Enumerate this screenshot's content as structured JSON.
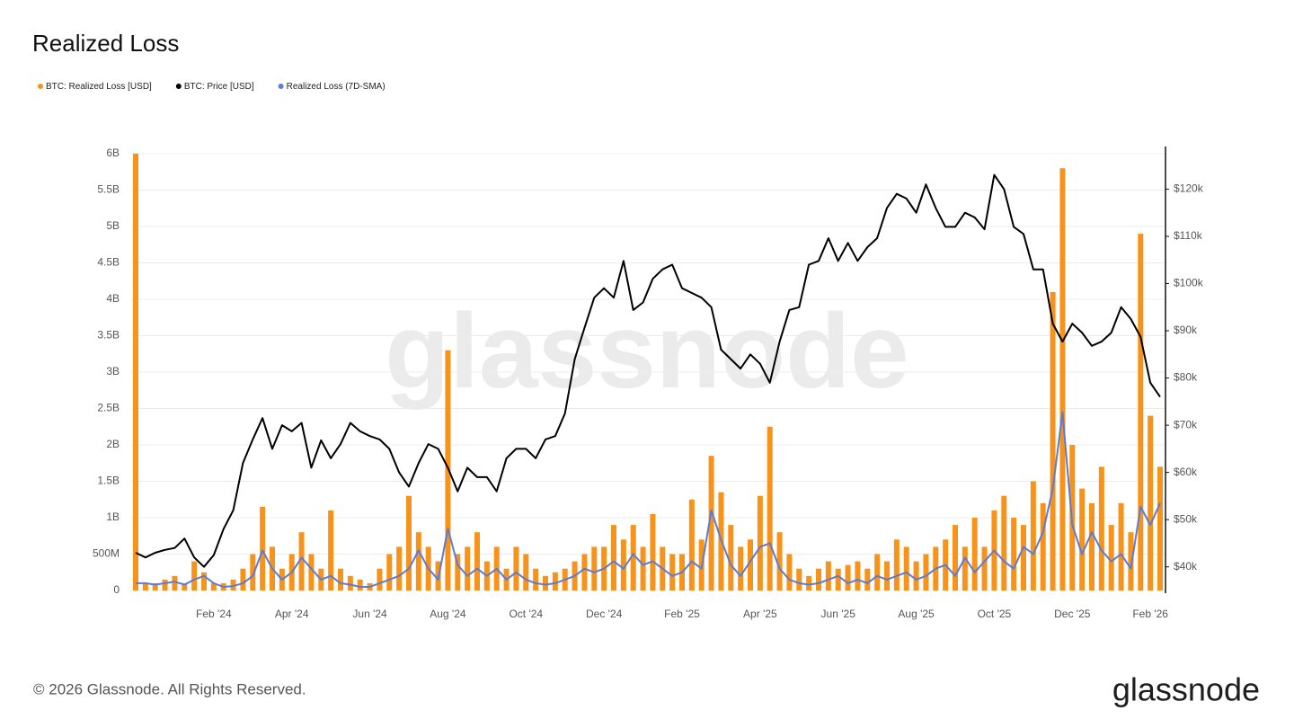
{
  "chart_data": {
    "type": "combo",
    "title": "Realized Loss",
    "watermark": "glassnode",
    "categories": [
      null,
      null,
      null,
      null,
      null,
      null,
      null,
      null,
      "Feb '24",
      null,
      null,
      null,
      null,
      null,
      null,
      null,
      "Apr '24",
      null,
      null,
      null,
      null,
      null,
      null,
      null,
      "Jun '24",
      null,
      null,
      null,
      null,
      null,
      null,
      null,
      "Aug '24",
      null,
      null,
      null,
      null,
      null,
      null,
      null,
      "Oct '24",
      null,
      null,
      null,
      null,
      null,
      null,
      null,
      "Dec '24",
      null,
      null,
      null,
      null,
      null,
      null,
      null,
      "Feb '25",
      null,
      null,
      null,
      null,
      null,
      null,
      null,
      "Apr '25",
      null,
      null,
      null,
      null,
      null,
      null,
      null,
      "Jun '25",
      null,
      null,
      null,
      null,
      null,
      null,
      null,
      "Aug '25",
      null,
      null,
      null,
      null,
      null,
      null,
      null,
      "Oct '25",
      null,
      null,
      null,
      null,
      null,
      null,
      null,
      "Dec '25",
      null,
      null,
      null,
      null,
      null,
      null,
      null,
      "Feb '26",
      null
    ],
    "series": [
      {
        "name": "BTC: Realized Loss [USD]",
        "type": "bar",
        "axis": "y",
        "color": "#f7931a",
        "values": [
          6000000000.0,
          100000000.0,
          100000000.0,
          150000000.0,
          200000000.0,
          100000000.0,
          400000000.0,
          250000000.0,
          100000000.0,
          100000000.0,
          150000000.0,
          300000000.0,
          500000000.0,
          1150000000.0,
          600000000.0,
          300000000.0,
          500000000.0,
          800000000.0,
          500000000.0,
          300000000.0,
          1100000000.0,
          300000000.0,
          200000000.0,
          150000000.0,
          100000000.0,
          300000000.0,
          500000000.0,
          600000000.0,
          1300000000.0,
          800000000.0,
          600000000.0,
          400000000.0,
          3300000000.0,
          500000000.0,
          600000000.0,
          800000000.0,
          400000000.0,
          600000000.0,
          300000000.0,
          600000000.0,
          500000000.0,
          300000000.0,
          200000000.0,
          250000000.0,
          300000000.0,
          400000000.0,
          500000000.0,
          600000000.0,
          600000000.0,
          900000000.0,
          700000000.0,
          900000000.0,
          600000000.0,
          1050000000.0,
          600000000.0,
          500000000.0,
          500000000.0,
          1250000000.0,
          700000000.0,
          1850000000.0,
          1350000000.0,
          900000000.0,
          600000000.0,
          700000000.0,
          1300000000.0,
          2250000000.0,
          800000000.0,
          500000000.0,
          300000000.0,
          200000000.0,
          300000000.0,
          400000000.0,
          300000000.0,
          350000000.0,
          400000000.0,
          300000000.0,
          500000000.0,
          400000000.0,
          700000000.0,
          600000000.0,
          400000000.0,
          500000000.0,
          600000000.0,
          700000000.0,
          900000000.0,
          600000000.0,
          1000000000.0,
          600000000.0,
          1100000000.0,
          1300000000.0,
          1000000000.0,
          900000000.0,
          1500000000.0,
          1200000000.0,
          4100000000.0,
          5800000000.0,
          2000000000.0,
          1400000000.0,
          1200000000.0,
          1700000000.0,
          900000000.0,
          1200000000.0,
          800000000.0,
          4900000000.0,
          2400000000.0,
          1700000000.0
        ]
      },
      {
        "name": "BTC: Price [USD]",
        "type": "line",
        "axis": "y2",
        "color": "#000000",
        "values": [
          43000,
          42000,
          43000,
          43600,
          44000,
          46000,
          42000,
          40000,
          42500,
          48000,
          52000,
          62000,
          67000,
          71500,
          65000,
          70000,
          68700,
          70500,
          61000,
          66800,
          63000,
          66000,
          70500,
          68700,
          67700,
          67000,
          65000,
          60000,
          57000,
          62000,
          66000,
          65000,
          61000,
          56000,
          61000,
          59000,
          59000,
          56000,
          63000,
          65000,
          65000,
          63000,
          67000,
          67700,
          72500,
          84000,
          90600,
          97000,
          99000,
          97000,
          104800,
          94400,
          96000,
          101000,
          103000,
          104000,
          99000,
          98000,
          97000,
          95000,
          86000,
          84000,
          82000,
          85000,
          83000,
          79000,
          87700,
          94400,
          95000,
          104000,
          104800,
          109600,
          104800,
          108600,
          104800,
          107700,
          109600,
          116000,
          119000,
          118000,
          115000,
          121000,
          116000,
          112000,
          112000,
          115000,
          114000,
          111500,
          123000,
          120000,
          112000,
          110500,
          103000,
          103000,
          91500,
          87700,
          91500,
          89600,
          86800,
          87700,
          89600,
          95000,
          92500,
          88700,
          79000,
          76000
        ]
      },
      {
        "name": "Realized Loss (7D-SMA)",
        "type": "line",
        "axis": "y",
        "color": "#5b7bd5",
        "values": [
          100000000.0,
          100000000.0,
          80000000.0,
          100000000.0,
          120000000.0,
          80000000.0,
          150000000.0,
          200000000.0,
          100000000.0,
          50000000.0,
          60000000.0,
          100000000.0,
          200000000.0,
          550000000.0,
          300000000.0,
          150000000.0,
          250000000.0,
          450000000.0,
          300000000.0,
          150000000.0,
          200000000.0,
          100000000.0,
          80000000.0,
          50000000.0,
          50000000.0,
          100000000.0,
          150000000.0,
          200000000.0,
          300000000.0,
          550000000.0,
          300000000.0,
          150000000.0,
          850000000.0,
          350000000.0,
          200000000.0,
          300000000.0,
          200000000.0,
          300000000.0,
          150000000.0,
          250000000.0,
          150000000.0,
          100000000.0,
          80000000.0,
          100000000.0,
          150000000.0,
          200000000.0,
          300000000.0,
          250000000.0,
          300000000.0,
          400000000.0,
          300000000.0,
          500000000.0,
          350000000.0,
          400000000.0,
          300000000.0,
          200000000.0,
          250000000.0,
          400000000.0,
          300000000.0,
          1100000000.0,
          700000000.0,
          350000000.0,
          200000000.0,
          400000000.0,
          600000000.0,
          650000000.0,
          300000000.0,
          150000000.0,
          100000000.0,
          80000000.0,
          100000000.0,
          150000000.0,
          200000000.0,
          100000000.0,
          150000000.0,
          100000000.0,
          200000000.0,
          150000000.0,
          200000000.0,
          250000000.0,
          150000000.0,
          200000000.0,
          300000000.0,
          350000000.0,
          200000000.0,
          450000000.0,
          250000000.0,
          400000000.0,
          550000000.0,
          400000000.0,
          300000000.0,
          600000000.0,
          500000000.0,
          800000000.0,
          1400000000.0,
          2450000000.0,
          900000000.0,
          500000000.0,
          800000000.0,
          550000000.0,
          400000000.0,
          500000000.0,
          300000000.0,
          1150000000.0,
          900000000.0,
          1200000000.0
        ]
      }
    ],
    "ylim": [
      0,
      6000000000
    ],
    "yticks": [
      0,
      {
        "value": 500000000,
        "label": "500M"
      },
      {
        "value": 1000000000,
        "label": "1B"
      },
      {
        "value": 1500000000,
        "label": "1.5B"
      },
      {
        "value": 2000000000,
        "label": "2B"
      },
      {
        "value": 2500000000,
        "label": "2.5B"
      },
      {
        "value": 3000000000,
        "label": "3B"
      },
      {
        "value": 3500000000,
        "label": "3.5B"
      },
      {
        "value": 4000000000,
        "label": "4B"
      },
      {
        "value": 4500000000,
        "label": "4.5B"
      },
      {
        "value": 5000000000,
        "label": "5B"
      },
      {
        "value": 5500000000,
        "label": "5.5B"
      },
      {
        "value": 6000000000,
        "label": "6B"
      }
    ],
    "y2lim": [
      35000,
      127500
    ],
    "y2ticks": [
      {
        "value": 40000,
        "label": "$40k"
      },
      {
        "value": 50000,
        "label": "$50k"
      },
      {
        "value": 60000,
        "label": "$60k"
      },
      {
        "value": 70000,
        "label": "$70k"
      },
      {
        "value": 80000,
        "label": "$80k"
      },
      {
        "value": 90000,
        "label": "$90k"
      },
      {
        "value": 100000,
        "label": "$100k"
      },
      {
        "value": 110000,
        "label": "$110k"
      },
      {
        "value": 120000,
        "label": "$120k"
      }
    ],
    "grid": true,
    "legend": "top-left"
  },
  "footer": {
    "copyright": "© 2026 Glassnode. All Rights Reserved.",
    "logo": "glassnode"
  }
}
